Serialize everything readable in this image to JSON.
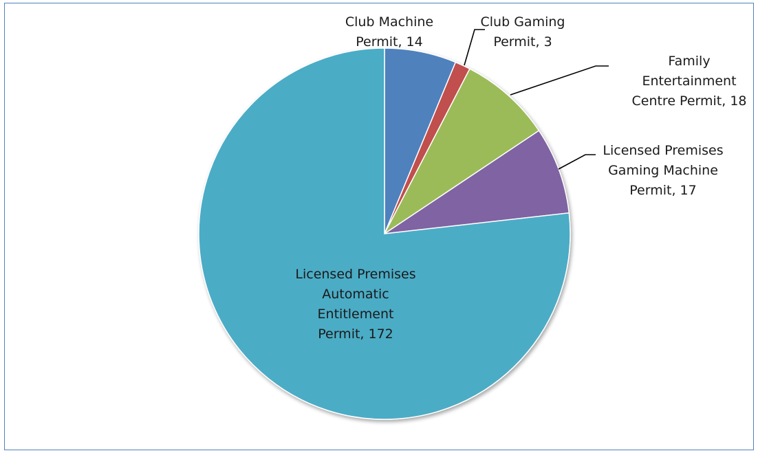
{
  "chart_data": {
    "type": "pie",
    "title": "",
    "slices": [
      {
        "label_lines": [
          "Club Machine",
          "Permit, 14"
        ],
        "category": "Club Machine Permit",
        "value": 14,
        "color": "#4f81bd"
      },
      {
        "label_lines": [
          "Club Gaming",
          "Permit, 3"
        ],
        "category": "Club Gaming Permit",
        "value": 3,
        "color": "#c0504d"
      },
      {
        "label_lines": [
          "Family",
          "Entertainment",
          "Centre Permit, 18"
        ],
        "category": "Family Entertainment Centre Permit",
        "value": 18,
        "color": "#9bbb59"
      },
      {
        "label_lines": [
          "Licensed Premises",
          "Gaming Machine",
          "Permit, 17"
        ],
        "category": "Licensed Premises Gaming Machine Permit",
        "value": 17,
        "color": "#8064a2"
      },
      {
        "label_lines": [
          "Licensed Premises",
          "Automatic",
          "Entitlement",
          "Permit, 172"
        ],
        "category": "Licensed Premises Automatic Entitlement Permit",
        "value": 172,
        "color": "#4bacc6"
      }
    ],
    "legend": "none",
    "data_labels": "category name and value"
  }
}
